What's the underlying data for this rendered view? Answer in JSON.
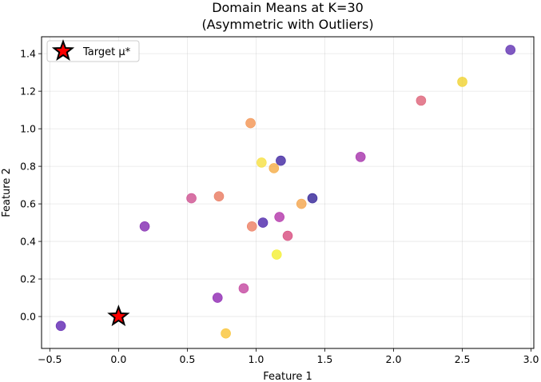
{
  "chart_data": {
    "type": "scatter",
    "title": "Domain Means at K=30",
    "subtitle": "(Asymmetric with Outliers)",
    "xlabel": "Feature 1",
    "ylabel": "Feature 2",
    "xlim": [
      -0.56,
      3.02
    ],
    "ylim": [
      -0.17,
      1.49
    ],
    "xticks": [
      -0.5,
      0.0,
      0.5,
      1.0,
      1.5,
      2.0,
      2.5,
      3.0
    ],
    "yticks": [
      0.0,
      0.2,
      0.4,
      0.6,
      0.8,
      1.0,
      1.2,
      1.4
    ],
    "xtick_labels": [
      "−0.5",
      "0.0",
      "0.5",
      "1.0",
      "1.5",
      "2.0",
      "2.5",
      "3.0"
    ],
    "ytick_labels": [
      "0.0",
      "0.2",
      "0.4",
      "0.6",
      "0.8",
      "1.0",
      "1.2",
      "1.4"
    ],
    "grid": true,
    "legend": {
      "position": "top-left",
      "entries": [
        {
          "label": "Target μ*",
          "marker": "star",
          "color": "#ff0000",
          "edge": "#000000"
        }
      ]
    },
    "target": {
      "x": 0.0,
      "y": 0.0,
      "label": "Target μ*"
    },
    "points": [
      {
        "x": 2.85,
        "y": 1.42,
        "color": "#5b2ab0"
      },
      {
        "x": 2.5,
        "y": 1.25,
        "color": "#f0d12a"
      },
      {
        "x": 2.2,
        "y": 1.15,
        "color": "#dc5c73"
      },
      {
        "x": 0.96,
        "y": 1.03,
        "color": "#f2904c"
      },
      {
        "x": 1.76,
        "y": 0.85,
        "color": "#a32ba8"
      },
      {
        "x": 1.18,
        "y": 0.83,
        "color": "#3a1f9e"
      },
      {
        "x": 1.04,
        "y": 0.82,
        "color": "#f6df3b"
      },
      {
        "x": 1.13,
        "y": 0.79,
        "color": "#f5a93f"
      },
      {
        "x": 0.53,
        "y": 0.63,
        "color": "#cc4a8c"
      },
      {
        "x": 0.73,
        "y": 0.64,
        "color": "#e8755a"
      },
      {
        "x": 1.41,
        "y": 0.63,
        "color": "#2b1b94"
      },
      {
        "x": 1.33,
        "y": 0.6,
        "color": "#f4a146"
      },
      {
        "x": 1.17,
        "y": 0.53,
        "color": "#b02ea6"
      },
      {
        "x": 1.05,
        "y": 0.5,
        "color": "#471fa8"
      },
      {
        "x": 0.97,
        "y": 0.48,
        "color": "#ec7a5e"
      },
      {
        "x": 0.19,
        "y": 0.48,
        "color": "#7e21ae"
      },
      {
        "x": 1.23,
        "y": 0.43,
        "color": "#d6457a"
      },
      {
        "x": 1.15,
        "y": 0.33,
        "color": "#f3ee2c"
      },
      {
        "x": 0.91,
        "y": 0.15,
        "color": "#c2409c"
      },
      {
        "x": 0.72,
        "y": 0.1,
        "color": "#8a20b0"
      },
      {
        "x": 0.78,
        "y": -0.09,
        "color": "#f9c22f"
      },
      {
        "x": -0.42,
        "y": -0.05,
        "color": "#5a1fb0"
      }
    ]
  }
}
